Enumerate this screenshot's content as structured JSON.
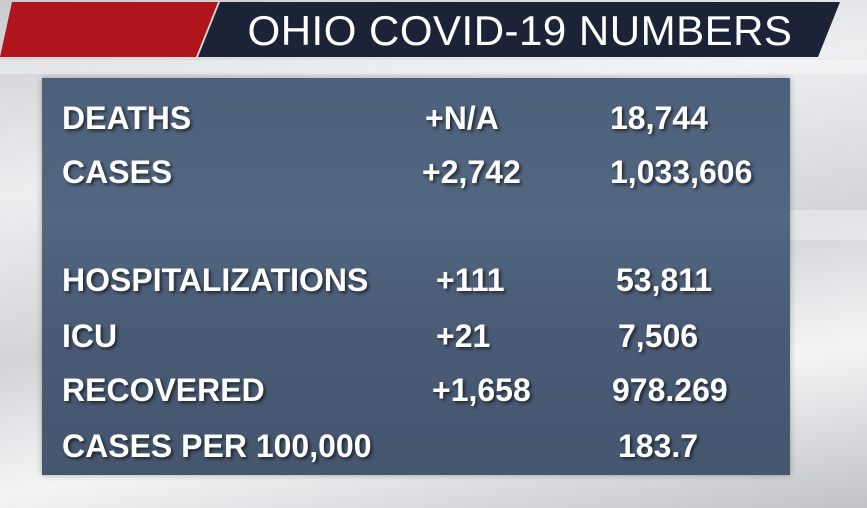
{
  "header": {
    "title": "OHIO COVID-19 NUMBERS"
  },
  "table": {
    "rows": [
      {
        "label": "DEATHS",
        "change": "+N/A",
        "total": "18,744"
      },
      {
        "label": "CASES",
        "change": "+2,742",
        "total": "1,033,606"
      },
      {
        "label": "HOSPITALIZATIONS",
        "change": "+111",
        "total": "53,811"
      },
      {
        "label": "ICU",
        "change": "+21",
        "total": "7,506"
      },
      {
        "label": "RECOVERED",
        "change": "+1,658",
        "total": "978.269"
      },
      {
        "label": "CASES PER 100,000",
        "total": "183.7"
      }
    ]
  }
}
